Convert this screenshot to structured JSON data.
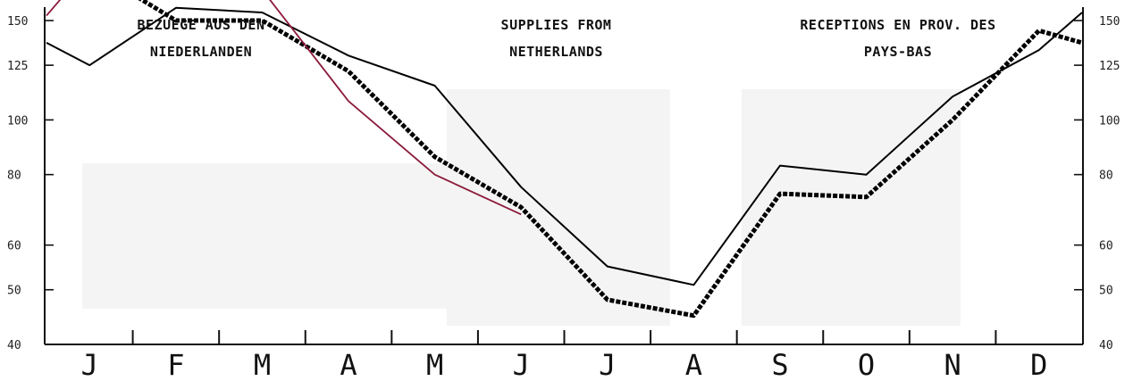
{
  "chart_data": {
    "type": "line",
    "titles": [
      {
        "lines": [
          "BEZUEGE AUS DEN",
          "NIEDERLANDEN"
        ]
      },
      {
        "lines": [
          "SUPPLIES FROM",
          "NETHERLANDS"
        ]
      },
      {
        "lines": [
          "RECEPTIONS EN PROV. DES",
          "PAYS-BAS"
        ]
      }
    ],
    "categories": [
      "J",
      "F",
      "M",
      "A",
      "M",
      "J",
      "J",
      "A",
      "S",
      "O",
      "N",
      "D"
    ],
    "yscale": "log",
    "ylim": [
      40,
      260
    ],
    "yticks": [
      40,
      50,
      60,
      80,
      100,
      125,
      150,
      200
    ],
    "y_axes": [
      "left",
      "right"
    ],
    "series": [
      {
        "style": "solid",
        "color": "#000000",
        "x": [
          0,
          0.5,
          1.5,
          2.5,
          3.5,
          4.5,
          5.5,
          6.5,
          7.5,
          8.5,
          9.5,
          10.5,
          11.5,
          12
        ],
        "values": [
          137,
          125,
          158,
          155,
          130,
          115,
          76,
          55,
          51,
          83,
          80,
          110,
          133,
          155
        ]
      },
      {
        "style": "dashed",
        "color": "#000000",
        "x": [
          0,
          0.5,
          1.5,
          2.5,
          3.5,
          4.5,
          5.5,
          6.5,
          7.5,
          8.5,
          9.5,
          10.5,
          11.5,
          12
        ],
        "values": [
          168,
          186,
          150,
          150,
          122,
          86,
          70,
          48,
          45,
          74,
          73,
          100,
          144,
          137
        ]
      },
      {
        "style": "solid",
        "color": "#8b1a3a",
        "x": [
          0,
          0.5,
          1.5,
          2.5,
          3.5,
          4.5,
          5.5
        ],
        "values": [
          153,
          188,
          172,
          170,
          108,
          80,
          68
        ]
      }
    ]
  }
}
